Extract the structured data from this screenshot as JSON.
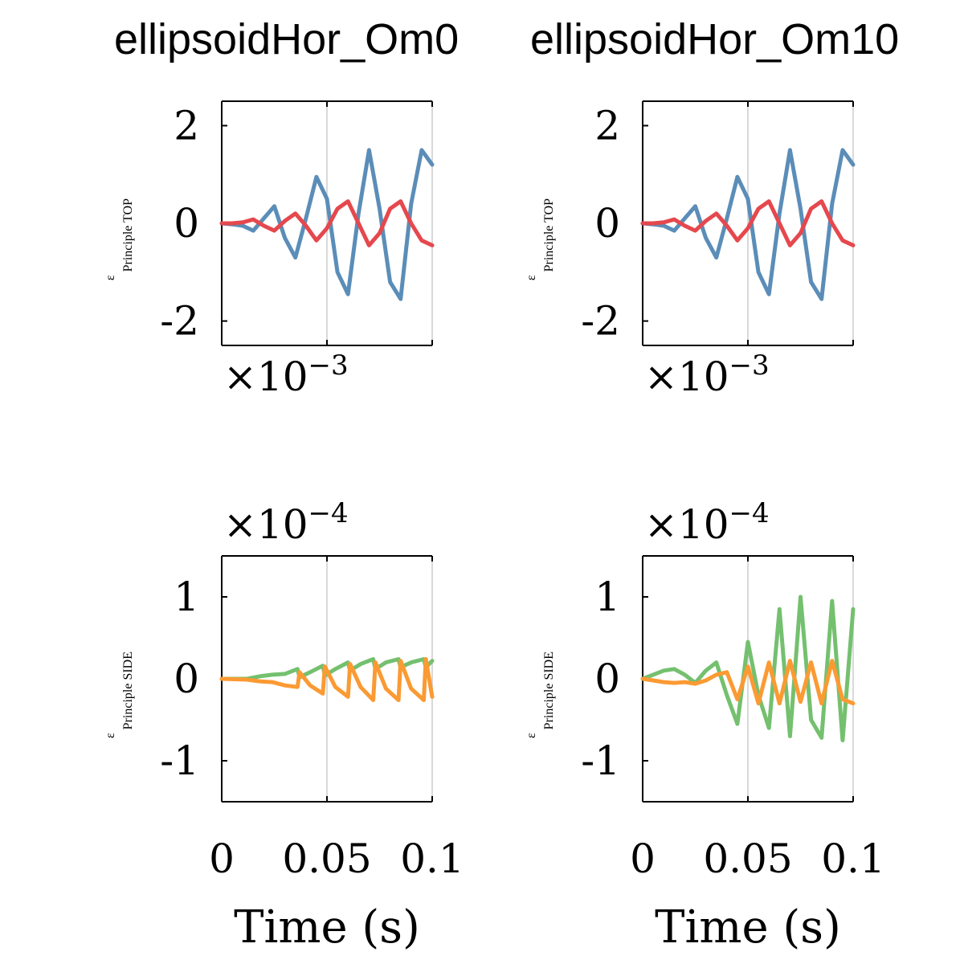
{
  "titles": {
    "left": "ellipsoidHor_Om0",
    "right": "ellipsoidHor_Om10"
  },
  "x_axis": {
    "label": "Time (s)",
    "tick_labels": [
      "0",
      "0.05",
      "0.1"
    ]
  },
  "colors": {
    "blue": "#5b8db8",
    "red": "#e5484d",
    "green": "#74c06f",
    "orange": "#fb9a33",
    "grid": "#d9d9d9"
  },
  "chart_data": [
    {
      "type": "line",
      "ylabel": "ε Principle TOP",
      "ylabel_symbol": "ε",
      "ylabel_sub": "Principle TOP",
      "y_multiplier": "×10^-3",
      "ylim": [
        -2.5,
        2.5
      ],
      "yticks": [
        -2,
        0,
        2
      ],
      "ytick_labels": [
        "-2",
        "0",
        "2"
      ],
      "xlim": [
        0,
        0.1
      ],
      "xticks": [
        0,
        0.05,
        0.1
      ],
      "grid": "x-only",
      "series": [
        {
          "color_key": "blue",
          "x": [
            0,
            0.005,
            0.01,
            0.015,
            0.02,
            0.025,
            0.03,
            0.035,
            0.04,
            0.045,
            0.05,
            0.055,
            0.06,
            0.065,
            0.07,
            0.075,
            0.08,
            0.085,
            0.09,
            0.095,
            0.1
          ],
          "y": [
            0,
            -0.02,
            -0.05,
            -0.15,
            0.1,
            0.35,
            -0.3,
            -0.7,
            0.1,
            0.95,
            0.5,
            -1.0,
            -1.45,
            0.2,
            1.5,
            0.3,
            -1.2,
            -1.55,
            0.4,
            1.5,
            1.2
          ]
        },
        {
          "color_key": "red",
          "x": [
            0,
            0.005,
            0.01,
            0.015,
            0.02,
            0.025,
            0.03,
            0.035,
            0.04,
            0.045,
            0.05,
            0.055,
            0.06,
            0.065,
            0.07,
            0.075,
            0.08,
            0.085,
            0.09,
            0.095,
            0.1
          ],
          "y": [
            0,
            0,
            0.02,
            0.08,
            -0.05,
            -0.15,
            0.05,
            0.2,
            -0.05,
            -0.35,
            -0.1,
            0.3,
            0.45,
            0.0,
            -0.45,
            -0.2,
            0.3,
            0.45,
            0.0,
            -0.35,
            -0.45
          ]
        }
      ]
    },
    {
      "type": "line",
      "ylabel": "ε Principle TOP",
      "ylabel_symbol": "ε",
      "ylabel_sub": "Principle TOP",
      "y_multiplier": "×10^-3",
      "ylim": [
        -2.5,
        2.5
      ],
      "yticks": [
        -2,
        0,
        2
      ],
      "ytick_labels": [
        "-2",
        "0",
        "2"
      ],
      "xlim": [
        0,
        0.1
      ],
      "xticks": [
        0,
        0.05,
        0.1
      ],
      "grid": "x-only",
      "series": [
        {
          "color_key": "blue",
          "x": [
            0,
            0.005,
            0.01,
            0.015,
            0.02,
            0.025,
            0.03,
            0.035,
            0.04,
            0.045,
            0.05,
            0.055,
            0.06,
            0.065,
            0.07,
            0.075,
            0.08,
            0.085,
            0.09,
            0.095,
            0.1
          ],
          "y": [
            0,
            -0.02,
            -0.05,
            -0.15,
            0.1,
            0.35,
            -0.3,
            -0.7,
            0.1,
            0.95,
            0.5,
            -1.0,
            -1.45,
            0.2,
            1.5,
            0.3,
            -1.2,
            -1.55,
            0.4,
            1.5,
            1.2
          ]
        },
        {
          "color_key": "red",
          "x": [
            0,
            0.005,
            0.01,
            0.015,
            0.02,
            0.025,
            0.03,
            0.035,
            0.04,
            0.045,
            0.05,
            0.055,
            0.06,
            0.065,
            0.07,
            0.075,
            0.08,
            0.085,
            0.09,
            0.095,
            0.1
          ],
          "y": [
            0,
            0,
            0.02,
            0.08,
            -0.05,
            -0.15,
            0.05,
            0.2,
            -0.05,
            -0.35,
            -0.1,
            0.3,
            0.45,
            0.0,
            -0.45,
            -0.2,
            0.3,
            0.45,
            0.0,
            -0.35,
            -0.45
          ]
        }
      ]
    },
    {
      "type": "line",
      "ylabel": "ε Principle SIDE",
      "ylabel_symbol": "ε",
      "ylabel_sub": "Principle SIDE",
      "y_multiplier": "×10^-4",
      "ylim": [
        -1.5,
        1.5
      ],
      "yticks": [
        -1,
        0,
        1
      ],
      "ytick_labels": [
        "-1",
        "0",
        "1"
      ],
      "xlim": [
        0,
        0.1
      ],
      "xticks": [
        0,
        0.05,
        0.1
      ],
      "grid": "x-only",
      "series": [
        {
          "color_key": "green",
          "x": [
            0,
            0.012,
            0.018,
            0.024,
            0.03,
            0.036,
            0.037,
            0.042,
            0.048,
            0.049,
            0.054,
            0.06,
            0.061,
            0.066,
            0.072,
            0.073,
            0.078,
            0.084,
            0.085,
            0.09,
            0.096,
            0.097,
            0.1
          ],
          "y": [
            0,
            0,
            0.03,
            0.05,
            0.06,
            0.12,
            0.02,
            0.08,
            0.16,
            0.04,
            0.12,
            0.2,
            0.1,
            0.18,
            0.24,
            0.12,
            0.2,
            0.24,
            0.14,
            0.2,
            0.24,
            0.14,
            0.22
          ]
        },
        {
          "color_key": "orange",
          "x": [
            0,
            0.012,
            0.018,
            0.024,
            0.03,
            0.036,
            0.037,
            0.042,
            0.048,
            0.049,
            0.054,
            0.06,
            0.061,
            0.066,
            0.072,
            0.073,
            0.078,
            0.084,
            0.085,
            0.09,
            0.096,
            0.097,
            0.1
          ],
          "y": [
            0,
            -0.01,
            -0.03,
            -0.04,
            -0.08,
            -0.1,
            0.08,
            -0.08,
            -0.18,
            0.15,
            -0.1,
            -0.22,
            0.18,
            -0.1,
            -0.26,
            0.2,
            -0.12,
            -0.26,
            0.22,
            -0.12,
            -0.26,
            0.24,
            -0.22
          ]
        }
      ]
    },
    {
      "type": "line",
      "ylabel": "ε Principle SIDE",
      "ylabel_symbol": "ε",
      "ylabel_sub": "Principle SIDE",
      "y_multiplier": "×10^-4",
      "ylim": [
        -1.5,
        1.5
      ],
      "yticks": [
        -1,
        0,
        1
      ],
      "ytick_labels": [
        "-1",
        "0",
        "1"
      ],
      "xlim": [
        0,
        0.1
      ],
      "xticks": [
        0,
        0.05,
        0.1
      ],
      "grid": "x-only",
      "series": [
        {
          "color_key": "green",
          "x": [
            0,
            0.005,
            0.01,
            0.015,
            0.02,
            0.025,
            0.03,
            0.035,
            0.04,
            0.045,
            0.05,
            0.055,
            0.06,
            0.065,
            0.07,
            0.075,
            0.08,
            0.085,
            0.09,
            0.095,
            0.1
          ],
          "y": [
            0,
            0.05,
            0.1,
            0.12,
            0.05,
            -0.05,
            0.1,
            0.2,
            -0.2,
            -0.55,
            0.45,
            -0.2,
            -0.6,
            0.85,
            -0.7,
            1.0,
            -0.5,
            -0.72,
            0.95,
            -0.75,
            0.85
          ]
        },
        {
          "color_key": "orange",
          "x": [
            0,
            0.005,
            0.01,
            0.015,
            0.02,
            0.025,
            0.03,
            0.035,
            0.04,
            0.045,
            0.05,
            0.055,
            0.06,
            0.065,
            0.07,
            0.075,
            0.08,
            0.085,
            0.09,
            0.095,
            0.1
          ],
          "y": [
            0,
            -0.02,
            -0.04,
            -0.05,
            -0.04,
            -0.06,
            -0.02,
            0.05,
            0.08,
            -0.25,
            0.15,
            -0.3,
            0.2,
            -0.3,
            0.22,
            -0.28,
            0.2,
            -0.3,
            0.22,
            -0.25,
            -0.3
          ]
        }
      ]
    }
  ]
}
